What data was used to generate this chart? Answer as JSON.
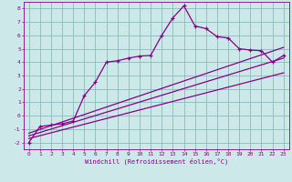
{
  "xlabel": "Windchill (Refroidissement éolien,°C)",
  "bg_color": "#cce8e8",
  "grid_color": "#88bbbb",
  "line_color": "#880088",
  "xlim": [
    -0.5,
    23.5
  ],
  "ylim": [
    -2.5,
    8.5
  ],
  "xticks": [
    0,
    1,
    2,
    3,
    4,
    5,
    6,
    7,
    8,
    9,
    10,
    11,
    12,
    13,
    14,
    15,
    16,
    17,
    18,
    19,
    20,
    21,
    22,
    23
  ],
  "yticks": [
    -2,
    -1,
    0,
    1,
    2,
    3,
    4,
    5,
    6,
    7,
    8
  ],
  "data_x": [
    0,
    1,
    2,
    3,
    4,
    5,
    6,
    7,
    8,
    9,
    10,
    11,
    12,
    13,
    14,
    15,
    16,
    17,
    18,
    19,
    20,
    21,
    22,
    23
  ],
  "data_y": [
    -2.0,
    -0.8,
    -0.7,
    -0.6,
    -0.4,
    1.5,
    2.5,
    4.0,
    4.1,
    4.3,
    4.45,
    4.5,
    6.0,
    7.3,
    8.2,
    6.7,
    6.5,
    5.9,
    5.8,
    5.0,
    4.9,
    4.85,
    4.0,
    4.5
  ],
  "trend1_x": [
    0,
    23
  ],
  "trend1_y": [
    -1.7,
    3.2
  ],
  "trend2_x": [
    0,
    23
  ],
  "trend2_y": [
    -1.5,
    4.3
  ],
  "trend3_x": [
    0,
    23
  ],
  "trend3_y": [
    -1.3,
    5.1
  ]
}
